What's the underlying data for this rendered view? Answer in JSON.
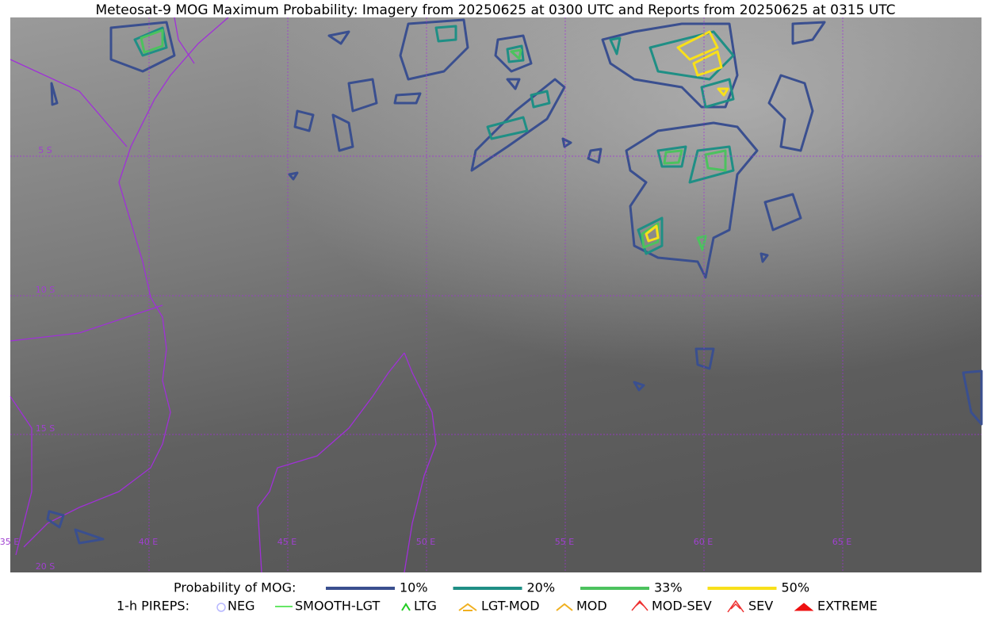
{
  "title": "Meteosat-9 MOG Maximum Probability: Imagery from 20250625 at 0300 UTC and Reports from 20250625 at 0315 UTC",
  "map": {
    "lat_labels": [
      "5 S",
      "10 S",
      "15 S",
      "20 S"
    ],
    "lon_labels": [
      "35 E",
      "40 E",
      "45 E",
      "50 E",
      "55 E",
      "60 E",
      "65 E"
    ]
  },
  "legend": {
    "probability": {
      "title": "Probability of MOG:",
      "items": [
        {
          "label": "10%",
          "color": "#3a4f8f"
        },
        {
          "label": "20%",
          "color": "#1f8f85"
        },
        {
          "label": "33%",
          "color": "#4cc25e"
        },
        {
          "label": "50%",
          "color": "#f8e01a"
        }
      ]
    },
    "pireps": {
      "title": "1-h PIREPS:",
      "items": [
        "NEG",
        "SMOOTH-LGT",
        "LTG",
        "LGT-MOD",
        "MOD",
        "MOD-SEV",
        "SEV",
        "EXTREME"
      ]
    }
  }
}
